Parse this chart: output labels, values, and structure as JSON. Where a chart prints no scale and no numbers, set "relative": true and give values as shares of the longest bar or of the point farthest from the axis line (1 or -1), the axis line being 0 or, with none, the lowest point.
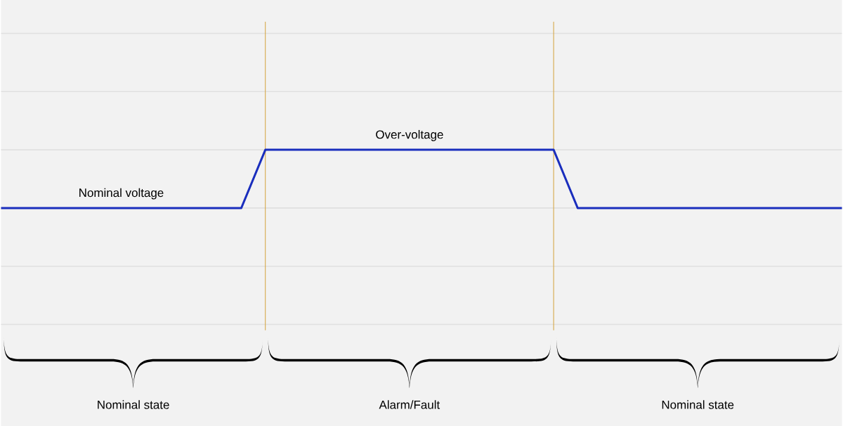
{
  "chart_data": {
    "type": "line",
    "relative": true,
    "categories": [
      null,
      null,
      null,
      null,
      null,
      null,
      null,
      null,
      null,
      null,
      null,
      null,
      null,
      null,
      null,
      null,
      null,
      null,
      null,
      null,
      null,
      null,
      null,
      null,
      null,
      null,
      null,
      null,
      null,
      null,
      null,
      null,
      null,
      null,
      null,
      null
    ],
    "series": [
      {
        "color": "#1a2ebd",
        "values": [
          0,
          0,
          0,
          0,
          0,
          0,
          0,
          0,
          0,
          0,
          0,
          1,
          1,
          1,
          1,
          1,
          1,
          1,
          1,
          1,
          1,
          1,
          1,
          1,
          0,
          0,
          0,
          0,
          0,
          0,
          0,
          0,
          0,
          0,
          0,
          0
        ]
      }
    ],
    "grid": "y",
    "marker": "none",
    "line_style": "solid",
    "annotations": [
      {
        "text": "Nominal voltage",
        "y": 0
      },
      {
        "text": "Over-voltage",
        "y": 1
      },
      "Nominal state",
      "Alarm/Fault",
      "Nominal state"
    ]
  }
}
